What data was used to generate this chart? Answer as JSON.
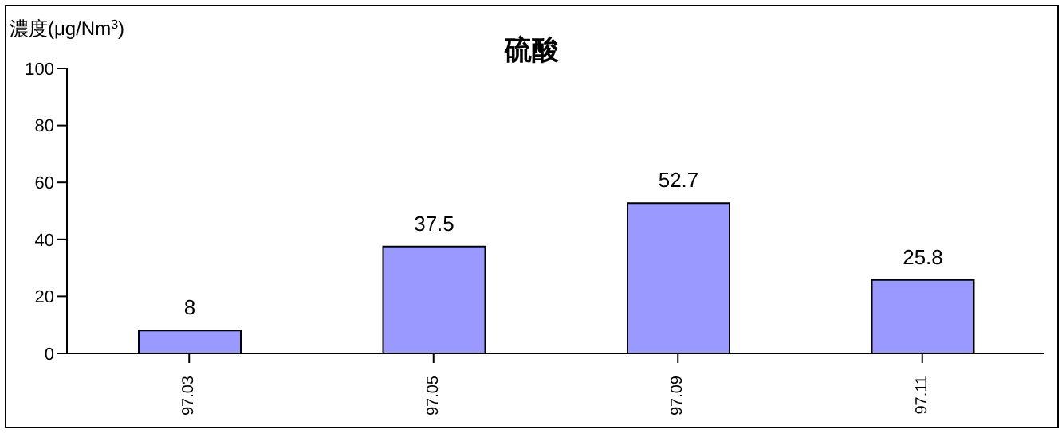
{
  "chart_data": {
    "type": "bar",
    "title": "硫酸",
    "ylabel": "濃度(μg/Nm$^{3}$)",
    "categories": [
      "97.03",
      "97.05",
      "97.09",
      "97.11"
    ],
    "values": [
      8,
      37.5,
      52.7,
      25.8
    ],
    "color": "#9999ff",
    "ylim": [
      0,
      100
    ],
    "yticks": [
      0,
      20,
      40,
      60,
      80,
      100
    ],
    "grid": false,
    "data_labels": true
  }
}
